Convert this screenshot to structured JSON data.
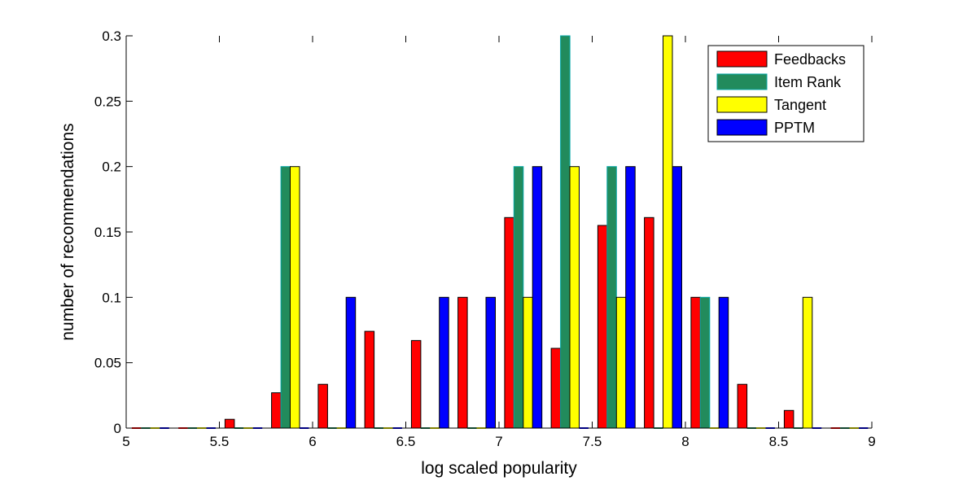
{
  "chart_data": {
    "type": "bar",
    "xlabel": "log scaled popularity",
    "ylabel": "number of recommendations",
    "xlim": [
      5,
      9
    ],
    "ylim": [
      0,
      0.3
    ],
    "x_ticks": [
      "5",
      "5.5",
      "6",
      "6.5",
      "7",
      "7.5",
      "8",
      "8.5",
      "9"
    ],
    "y_ticks": [
      "0",
      "0.05",
      "0.1",
      "0.15",
      "0.2",
      "0.25",
      "0.3"
    ],
    "grid": false,
    "legend_position": "top-right",
    "bin_centers": [
      5.13,
      5.38,
      5.63,
      5.88,
      6.13,
      6.38,
      6.63,
      6.88,
      7.13,
      7.38,
      7.63,
      7.88,
      8.13,
      8.38,
      8.63,
      8.88
    ],
    "series": [
      {
        "name": "Feedbacks",
        "color": "#ff0000",
        "values": [
          0,
          0,
          0.0067,
          0.027,
          0.0335,
          0.074,
          0.067,
          0.1,
          0.161,
          0.061,
          0.155,
          0.161,
          0.1,
          0.0335,
          0.0135,
          0
        ]
      },
      {
        "name": "Item Rank",
        "color": "#228b5c",
        "values": [
          0,
          0,
          0,
          0.2,
          0,
          0,
          0,
          0,
          0.2,
          0.3,
          0.2,
          0,
          0.1,
          0,
          0,
          0
        ]
      },
      {
        "name": "Tangent",
        "color": "#ffff00",
        "values": [
          0,
          0,
          0,
          0.2,
          0,
          0,
          0,
          0,
          0.1,
          0.2,
          0.1,
          0.3,
          0,
          0,
          0.1,
          0
        ]
      },
      {
        "name": "PPTM",
        "color": "#0000ff",
        "values": [
          0,
          0,
          0,
          0,
          0.1,
          0,
          0.1,
          0.1,
          0.2,
          0,
          0.2,
          0.2,
          0.1,
          0,
          0,
          0
        ]
      }
    ]
  }
}
